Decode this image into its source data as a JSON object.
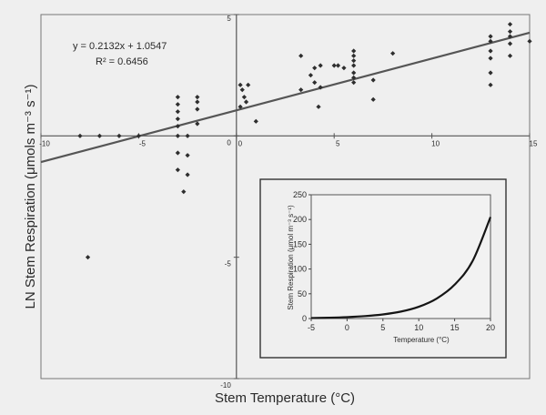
{
  "chart_data": [
    {
      "type": "scatter",
      "xlabel": "Stem Temperature (°C)",
      "ylabel": "LN Stem Respiration (μmols m⁻³ s⁻¹)",
      "xlim": [
        -10,
        15
      ],
      "ylim": [
        -10,
        5
      ],
      "x_ticks": [
        "-10",
        "-5",
        "0",
        "5",
        "10",
        "15"
      ],
      "y_ticks": [
        "5",
        "0",
        "-5",
        "-10"
      ],
      "grid": false,
      "axes_cross_at_origin": true,
      "regression": {
        "slope": 0.2132,
        "intercept": 1.0547,
        "equation_label": "y = 0.2132x + 1.0547",
        "r2_label": "R² = 0.6456"
      },
      "points": [
        {
          "x": -8,
          "y": 0
        },
        {
          "x": -7,
          "y": 0
        },
        {
          "x": -6,
          "y": 0
        },
        {
          "x": -5,
          "y": 0
        },
        {
          "x": -7.6,
          "y": -5
        },
        {
          "x": -3,
          "y": 1.6
        },
        {
          "x": -3,
          "y": 1.3
        },
        {
          "x": -3,
          "y": 1.0
        },
        {
          "x": -3,
          "y": 0.7
        },
        {
          "x": -3,
          "y": 0.4
        },
        {
          "x": -3,
          "y": 0
        },
        {
          "x": -3,
          "y": -1.4
        },
        {
          "x": -3,
          "y": -0.7
        },
        {
          "x": -2.5,
          "y": 0
        },
        {
          "x": -2.5,
          "y": -0.8
        },
        {
          "x": -2.5,
          "y": -1.6
        },
        {
          "x": -2.7,
          "y": -2.3
        },
        {
          "x": -2,
          "y": 1.6
        },
        {
          "x": -2,
          "y": 1.4
        },
        {
          "x": -2,
          "y": 1.1
        },
        {
          "x": -2,
          "y": 0.5
        },
        {
          "x": 0.2,
          "y": 2.1
        },
        {
          "x": 0.3,
          "y": 1.9
        },
        {
          "x": 0.4,
          "y": 1.6
        },
        {
          "x": 0.5,
          "y": 1.4
        },
        {
          "x": 0.6,
          "y": 2.1
        },
        {
          "x": 0.2,
          "y": 1.2
        },
        {
          "x": 1,
          "y": 0.6
        },
        {
          "x": 3.3,
          "y": 3.3
        },
        {
          "x": 3.3,
          "y": 1.9
        },
        {
          "x": 3.8,
          "y": 2.5
        },
        {
          "x": 4,
          "y": 2.8
        },
        {
          "x": 4,
          "y": 2.2
        },
        {
          "x": 4.2,
          "y": 1.2
        },
        {
          "x": 4.3,
          "y": 2.9
        },
        {
          "x": 4.3,
          "y": 2.0
        },
        {
          "x": 5,
          "y": 2.9
        },
        {
          "x": 5.2,
          "y": 2.9
        },
        {
          "x": 5.5,
          "y": 2.8
        },
        {
          "x": 6,
          "y": 3.5
        },
        {
          "x": 6,
          "y": 3.3
        },
        {
          "x": 6,
          "y": 3.1
        },
        {
          "x": 6,
          "y": 2.9
        },
        {
          "x": 6,
          "y": 2.6
        },
        {
          "x": 6,
          "y": 2.4
        },
        {
          "x": 6,
          "y": 2.2
        },
        {
          "x": 7,
          "y": 2.3
        },
        {
          "x": 7,
          "y": 1.5
        },
        {
          "x": 8,
          "y": 3.4
        },
        {
          "x": 13,
          "y": 4.1
        },
        {
          "x": 13,
          "y": 3.9
        },
        {
          "x": 13,
          "y": 3.5
        },
        {
          "x": 13,
          "y": 3.2
        },
        {
          "x": 13,
          "y": 2.6
        },
        {
          "x": 13,
          "y": 2.1
        },
        {
          "x": 14,
          "y": 4.6
        },
        {
          "x": 14,
          "y": 4.3
        },
        {
          "x": 14,
          "y": 4.1
        },
        {
          "x": 14,
          "y": 3.8
        },
        {
          "x": 14,
          "y": 3.3
        },
        {
          "x": 15,
          "y": 3.9
        }
      ]
    },
    {
      "type": "line",
      "xlabel": "Temperature (°C)",
      "ylabel": "Stem Respiration (μmol m⁻³ s⁻¹)",
      "xlim": [
        -5,
        20
      ],
      "ylim": [
        0,
        250
      ],
      "x_ticks": [
        "-5",
        "0",
        "5",
        "10",
        "15",
        "20"
      ],
      "y_ticks": [
        "250",
        "200",
        "150",
        "100",
        "50",
        "0"
      ],
      "x": [
        -5,
        -2.5,
        0,
        2.5,
        5,
        7.5,
        10,
        12.5,
        15,
        17.5,
        20
      ],
      "y": [
        1.0,
        1.7,
        2.9,
        4.9,
        8.3,
        14.0,
        23.8,
        40.4,
        68.4,
        116,
        205
      ]
    }
  ],
  "colors": {
    "background": "#efefef",
    "axis": "#555555",
    "points": "#2e2e2e",
    "line": "#555555",
    "curve": "#151515"
  }
}
